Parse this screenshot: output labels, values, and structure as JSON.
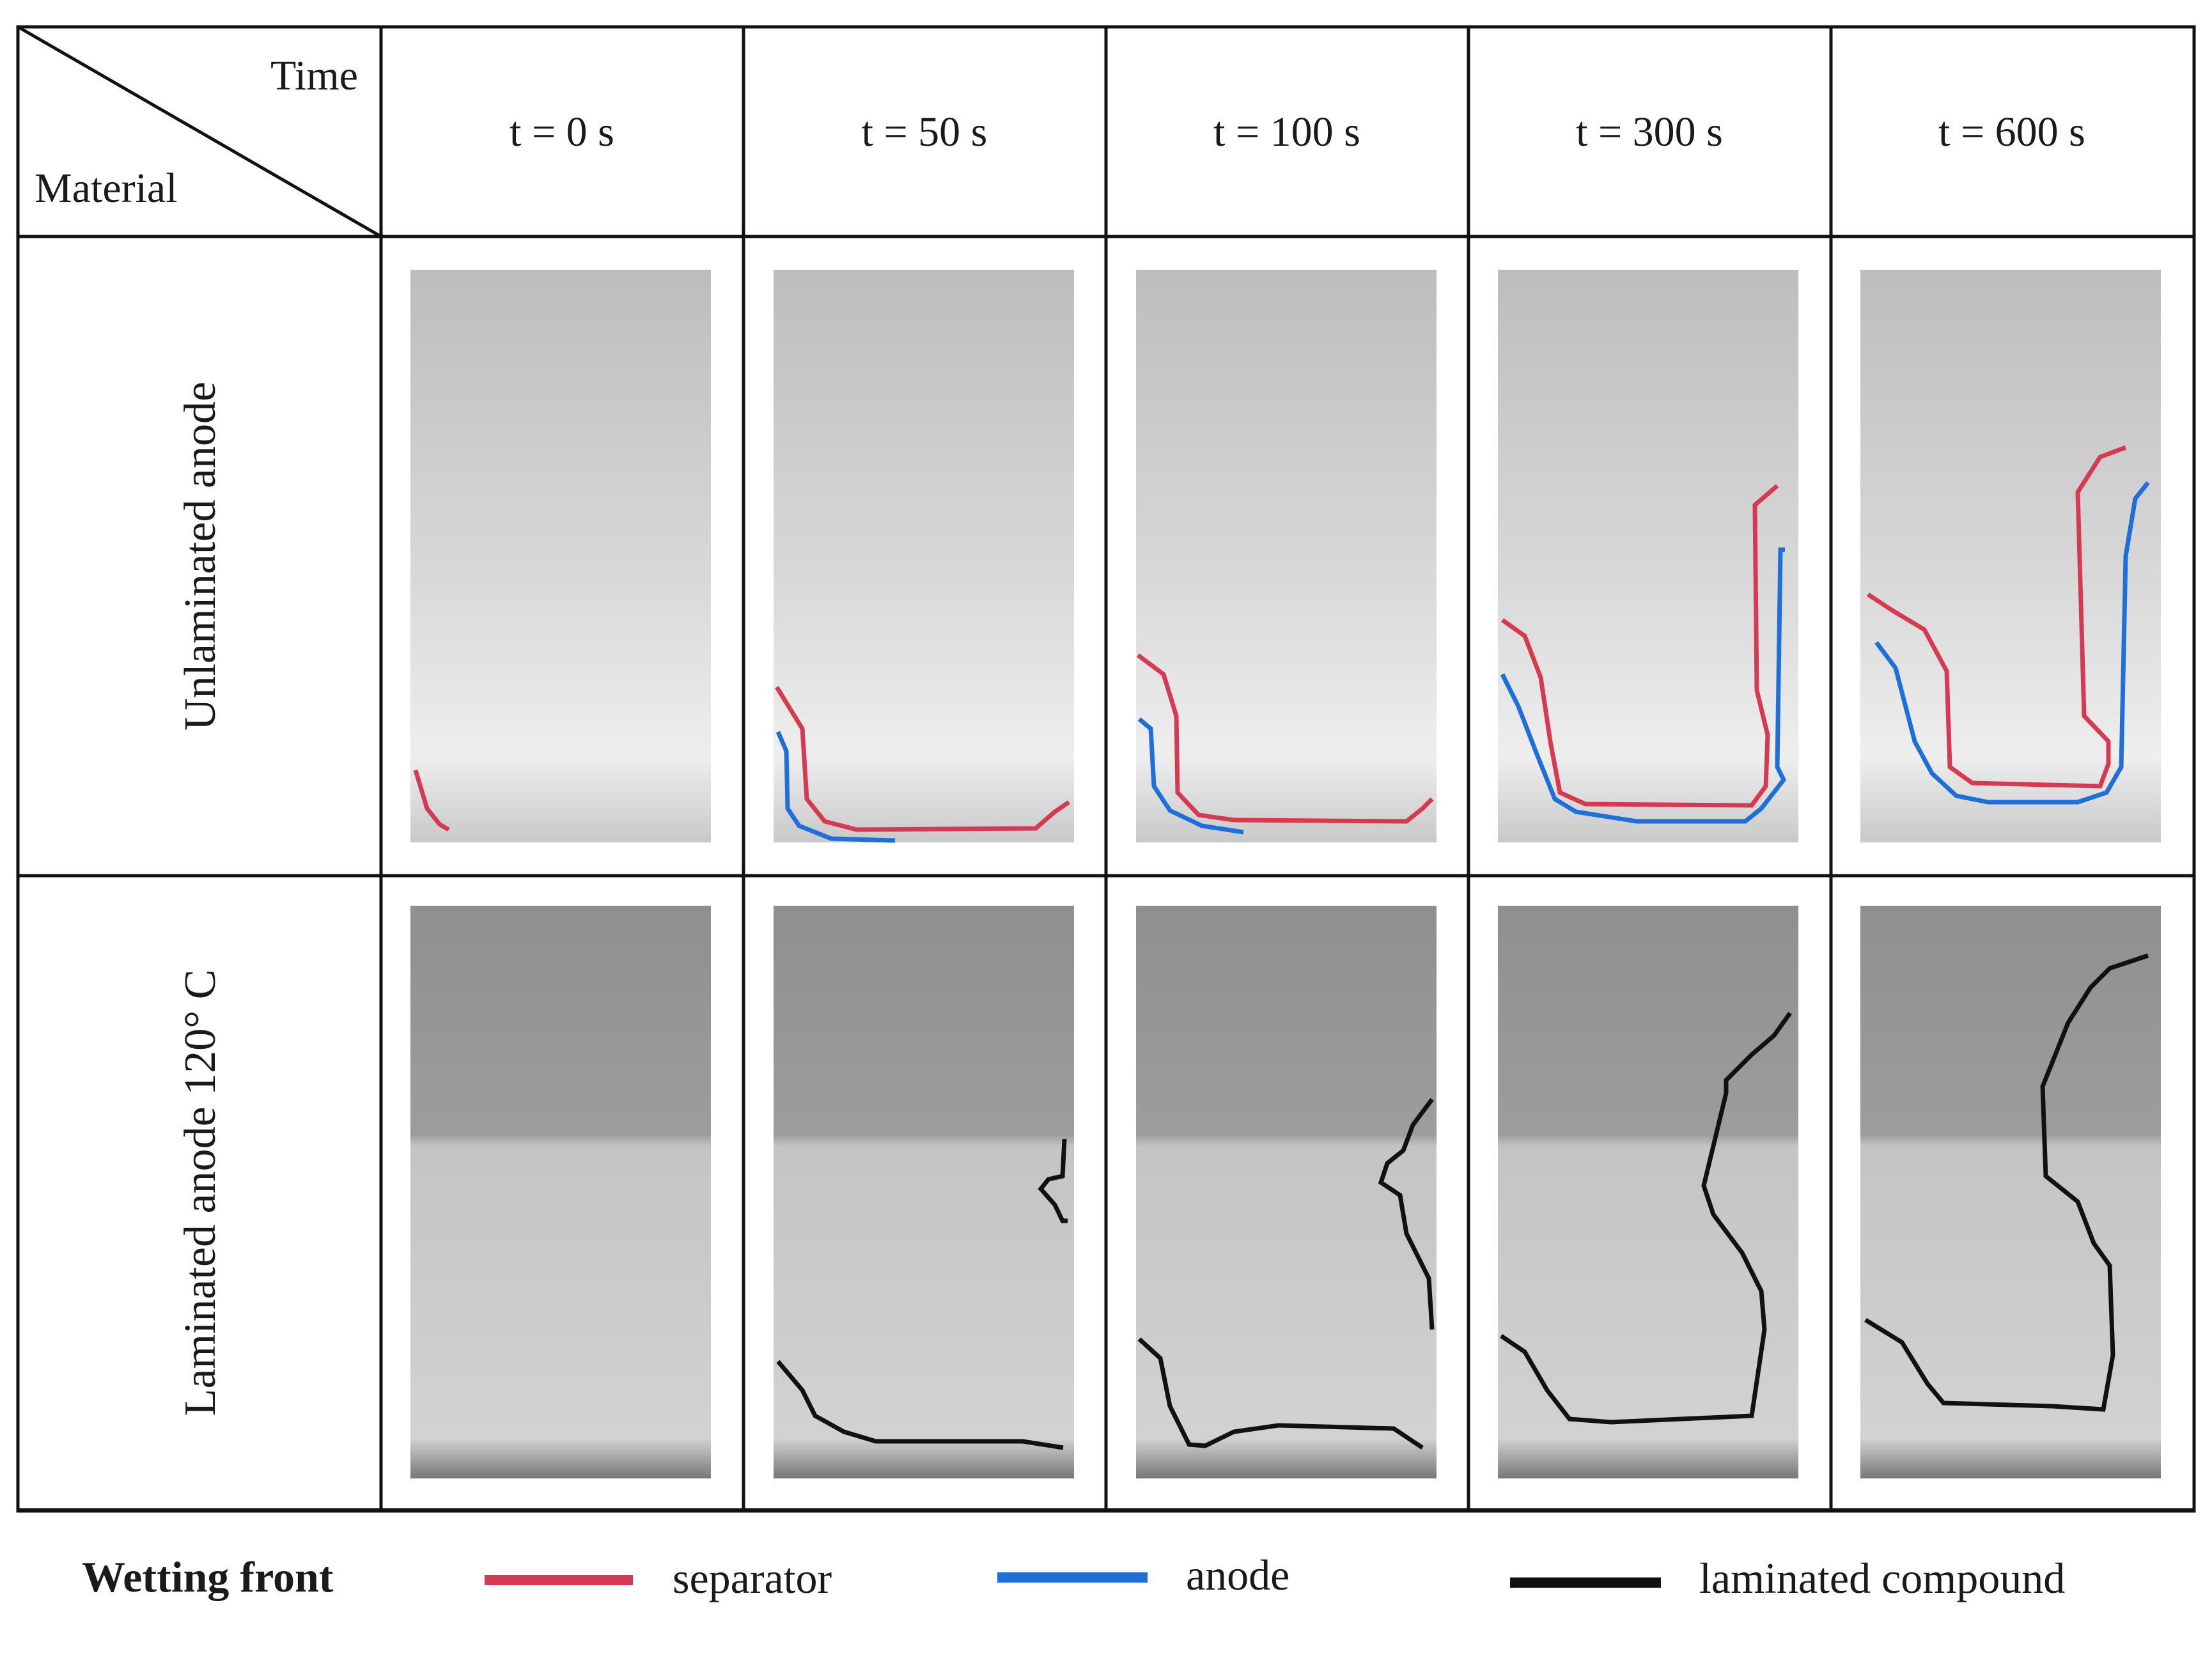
{
  "header": {
    "corner_top": "Time",
    "corner_bottom": "Material",
    "times": [
      "t = 0 s",
      "t = 50 s",
      "t = 100 s",
      "t = 300 s",
      "t = 600 s"
    ]
  },
  "rows": [
    {
      "label": "Unlaminated anode",
      "image_tone": "#d8d8d8",
      "fronts": [
        {
          "separator": "bottom-left corner",
          "anode": null
        },
        {
          "separator": "along bottom edge, rising on left",
          "anode": "bottom-left corner"
        },
        {
          "separator": "along bottom edge, rising on left",
          "anode": "bottom-left corner"
        },
        {
          "separator": "U-shape up both sides",
          "anode": "U-shape up both sides"
        },
        {
          "separator": "U-shape up both sides",
          "anode": "U-shape up both sides"
        }
      ]
    },
    {
      "label": "Laminated anode 120° C",
      "image_tone": "#a9a9a9",
      "fronts": [
        {
          "laminated_compound": null
        },
        {
          "laminated_compound": "bottom edge and small right notch"
        },
        {
          "laminated_compound": "bottom edge and right-side bulge"
        },
        {
          "laminated_compound": "bottom and right region"
        },
        {
          "laminated_compound": "bottom and large right region"
        }
      ]
    }
  ],
  "legend": {
    "title": "Wetting front",
    "items": [
      {
        "label": "separator",
        "color": "#d63a52"
      },
      {
        "label": "anode",
        "color": "#1e6fd9"
      },
      {
        "label": "laminated compound",
        "color": "#111111"
      }
    ]
  }
}
